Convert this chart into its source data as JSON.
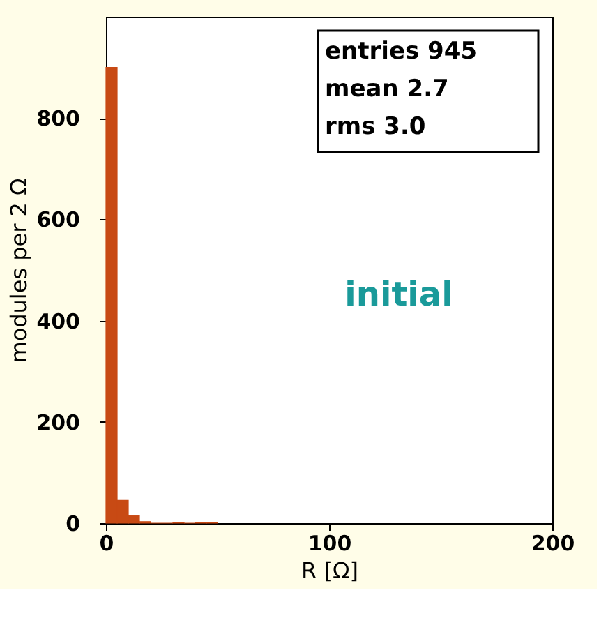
{
  "chart_data": {
    "type": "histogram",
    "xlabel": "R [Ω]",
    "ylabel": "modules per 2 Ω",
    "bins": [
      0,
      5,
      10,
      15,
      20,
      25,
      30,
      35,
      40,
      45,
      50
    ],
    "values": [
      900,
      45,
      15,
      3,
      0,
      0,
      2,
      0,
      2,
      2
    ],
    "color": "#c84a14",
    "xlim": [
      0,
      200
    ],
    "xticks": [
      0,
      100,
      200
    ],
    "ylim": [
      0,
      1000
    ],
    "yticks": [
      0,
      200,
      400,
      600,
      800
    ],
    "annotations": [
      "entries 945",
      "mean 2.7",
      "rms 3.0",
      "initial"
    ]
  }
}
